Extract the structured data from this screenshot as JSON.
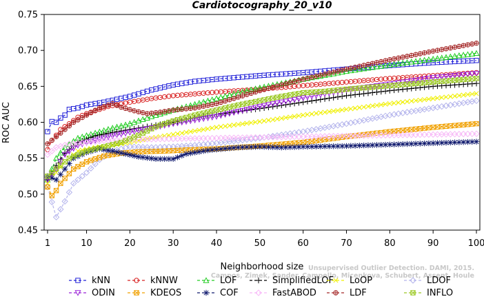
{
  "chart_data": {
    "type": "line",
    "title": "Cardiotocography_20_v10",
    "xlabel": "Neighborhood size",
    "ylabel": "ROC AUC",
    "xlim": [
      1,
      100
    ],
    "ylim": [
      0.45,
      0.75
    ],
    "x_ticks": [
      1,
      10,
      20,
      30,
      40,
      50,
      60,
      70,
      80,
      90,
      100
    ],
    "y_ticks": [
      0.45,
      0.5,
      0.55,
      0.6,
      0.65,
      0.7,
      0.75
    ],
    "grid": false,
    "legend_position": "bottom",
    "credit_lines": [
      "Unsupervised Outlier Detection. DAMI, 2015.",
      "Campos, Zimek, Sander, Campello, Micenkova, Schubert, Assent, Houle"
    ],
    "series": [
      {
        "name": "kNN",
        "color": "#1f1fd8",
        "marker": "square",
        "dash": "4,3",
        "points": [
          [
            1,
            0.587
          ],
          [
            2,
            0.601
          ],
          [
            3,
            0.6
          ],
          [
            4,
            0.606
          ],
          [
            5,
            0.61
          ],
          [
            6,
            0.618
          ],
          [
            8,
            0.62
          ],
          [
            10,
            0.624
          ],
          [
            14,
            0.628
          ],
          [
            20,
            0.636
          ],
          [
            25,
            0.645
          ],
          [
            30,
            0.652
          ],
          [
            35,
            0.657
          ],
          [
            40,
            0.66
          ],
          [
            50,
            0.665
          ],
          [
            60,
            0.669
          ],
          [
            70,
            0.674
          ],
          [
            80,
            0.679
          ],
          [
            90,
            0.683
          ],
          [
            100,
            0.686
          ]
        ]
      },
      {
        "name": "kNNW",
        "color": "#d82020",
        "marker": "circle",
        "dash": "4,3",
        "points": [
          [
            1,
            0.562
          ],
          [
            2,
            0.575
          ],
          [
            3,
            0.582
          ],
          [
            4,
            0.59
          ],
          [
            6,
            0.598
          ],
          [
            8,
            0.607
          ],
          [
            10,
            0.612
          ],
          [
            15,
            0.622
          ],
          [
            20,
            0.628
          ],
          [
            25,
            0.633
          ],
          [
            30,
            0.637
          ],
          [
            40,
            0.642
          ],
          [
            50,
            0.646
          ],
          [
            60,
            0.651
          ],
          [
            70,
            0.656
          ],
          [
            80,
            0.661
          ],
          [
            90,
            0.665
          ],
          [
            100,
            0.669
          ]
        ]
      },
      {
        "name": "LOF",
        "color": "#22cc22",
        "marker": "triangle",
        "dash": "4,3",
        "points": [
          [
            1,
            0.52
          ],
          [
            2,
            0.535
          ],
          [
            3,
            0.55
          ],
          [
            5,
            0.565
          ],
          [
            8,
            0.578
          ],
          [
            12,
            0.585
          ],
          [
            16,
            0.592
          ],
          [
            20,
            0.598
          ],
          [
            25,
            0.608
          ],
          [
            30,
            0.617
          ],
          [
            35,
            0.625
          ],
          [
            40,
            0.633
          ],
          [
            45,
            0.641
          ],
          [
            50,
            0.648
          ],
          [
            60,
            0.66
          ],
          [
            70,
            0.671
          ],
          [
            80,
            0.68
          ],
          [
            90,
            0.688
          ],
          [
            100,
            0.696
          ]
        ]
      },
      {
        "name": "SimplifiedLOF",
        "color": "#000000",
        "marker": "plus",
        "dash": "4,3",
        "points": [
          [
            1,
            0.52
          ],
          [
            2,
            0.528
          ],
          [
            3,
            0.54
          ],
          [
            5,
            0.557
          ],
          [
            8,
            0.572
          ],
          [
            12,
            0.581
          ],
          [
            16,
            0.586
          ],
          [
            20,
            0.59
          ],
          [
            25,
            0.595
          ],
          [
            30,
            0.6
          ],
          [
            35,
            0.606
          ],
          [
            40,
            0.611
          ],
          [
            50,
            0.619
          ],
          [
            60,
            0.628
          ],
          [
            70,
            0.637
          ],
          [
            80,
            0.644
          ],
          [
            90,
            0.65
          ],
          [
            100,
            0.654
          ]
        ]
      },
      {
        "name": "LoOP",
        "color": "#f0f000",
        "marker": "x",
        "dash": "4,3",
        "points": [
          [
            1,
            0.515
          ],
          [
            3,
            0.53
          ],
          [
            5,
            0.545
          ],
          [
            8,
            0.56
          ],
          [
            12,
            0.565
          ],
          [
            16,
            0.568
          ],
          [
            20,
            0.572
          ],
          [
            25,
            0.578
          ],
          [
            30,
            0.583
          ],
          [
            40,
            0.593
          ],
          [
            50,
            0.601
          ],
          [
            60,
            0.61
          ],
          [
            70,
            0.618
          ],
          [
            80,
            0.626
          ],
          [
            90,
            0.633
          ],
          [
            100,
            0.64
          ]
        ]
      },
      {
        "name": "LDOF",
        "color": "#b4b4ec",
        "marker": "diamond",
        "dash": "4,3",
        "points": [
          [
            1,
            0.51
          ],
          [
            3,
            0.468
          ],
          [
            5,
            0.49
          ],
          [
            7,
            0.515
          ],
          [
            10,
            0.53
          ],
          [
            13,
            0.548
          ],
          [
            16,
            0.56
          ],
          [
            20,
            0.566
          ],
          [
            25,
            0.565
          ],
          [
            30,
            0.566
          ],
          [
            35,
            0.568
          ],
          [
            40,
            0.571
          ],
          [
            50,
            0.578
          ],
          [
            60,
            0.587
          ],
          [
            70,
            0.598
          ],
          [
            80,
            0.61
          ],
          [
            90,
            0.62
          ],
          [
            100,
            0.63
          ]
        ]
      },
      {
        "name": "ODIN",
        "color": "#9a20d8",
        "marker": "triangle-down",
        "dash": "4,3",
        "points": [
          [
            1,
            0.52
          ],
          [
            3,
            0.535
          ],
          [
            5,
            0.555
          ],
          [
            8,
            0.568
          ],
          [
            12,
            0.575
          ],
          [
            16,
            0.581
          ],
          [
            20,
            0.586
          ],
          [
            25,
            0.592
          ],
          [
            30,
            0.598
          ],
          [
            35,
            0.603
          ],
          [
            40,
            0.608
          ],
          [
            45,
            0.615
          ],
          [
            50,
            0.622
          ],
          [
            60,
            0.634
          ],
          [
            70,
            0.645
          ],
          [
            80,
            0.653
          ],
          [
            90,
            0.662
          ],
          [
            100,
            0.668
          ]
        ]
      },
      {
        "name": "KDEOS",
        "color": "#f0a000",
        "marker": "square-x",
        "dash": "4,3",
        "points": [
          [
            1,
            0.51
          ],
          [
            2,
            0.498
          ],
          [
            3,
            0.505
          ],
          [
            4,
            0.515
          ],
          [
            5,
            0.522
          ],
          [
            7,
            0.535
          ],
          [
            10,
            0.545
          ],
          [
            14,
            0.553
          ],
          [
            18,
            0.557
          ],
          [
            22,
            0.559
          ],
          [
            28,
            0.56
          ],
          [
            35,
            0.562
          ],
          [
            40,
            0.563
          ],
          [
            50,
            0.567
          ],
          [
            60,
            0.572
          ],
          [
            70,
            0.58
          ],
          [
            80,
            0.587
          ],
          [
            90,
            0.593
          ],
          [
            100,
            0.598
          ]
        ]
      },
      {
        "name": "COF",
        "color": "#101a6e",
        "marker": "star",
        "dash": "4,3",
        "points": [
          [
            1,
            0.525
          ],
          [
            3,
            0.52
          ],
          [
            5,
            0.535
          ],
          [
            7,
            0.55
          ],
          [
            10,
            0.558
          ],
          [
            13,
            0.563
          ],
          [
            16,
            0.56
          ],
          [
            19,
            0.556
          ],
          [
            22,
            0.552
          ],
          [
            26,
            0.549
          ],
          [
            30,
            0.549
          ],
          [
            33,
            0.556
          ],
          [
            38,
            0.561
          ],
          [
            45,
            0.565
          ],
          [
            50,
            0.566
          ],
          [
            55,
            0.565
          ],
          [
            60,
            0.566
          ],
          [
            70,
            0.567
          ],
          [
            80,
            0.569
          ],
          [
            90,
            0.571
          ],
          [
            100,
            0.573
          ]
        ]
      },
      {
        "name": "FastABOD",
        "color": "#f7b8f7",
        "marker": "diamond",
        "dash": "4,3",
        "points": [
          [
            1,
            0.555
          ],
          [
            3,
            0.565
          ],
          [
            6,
            0.57
          ],
          [
            10,
            0.572
          ],
          [
            15,
            0.575
          ],
          [
            20,
            0.576
          ],
          [
            30,
            0.577
          ],
          [
            40,
            0.578
          ],
          [
            50,
            0.579
          ],
          [
            60,
            0.58
          ],
          [
            70,
            0.581
          ],
          [
            80,
            0.582
          ],
          [
            90,
            0.583
          ],
          [
            100,
            0.584
          ]
        ]
      },
      {
        "name": "LDF",
        "color": "#a52828",
        "marker": "circle-plus",
        "dash": "4,3",
        "points": [
          [
            1,
            0.57
          ],
          [
            3,
            0.58
          ],
          [
            5,
            0.59
          ],
          [
            7,
            0.6
          ],
          [
            10,
            0.61
          ],
          [
            13,
            0.62
          ],
          [
            16,
            0.626
          ],
          [
            18,
            0.621
          ],
          [
            21,
            0.616
          ],
          [
            24,
            0.612
          ],
          [
            27,
            0.614
          ],
          [
            30,
            0.617
          ],
          [
            35,
            0.62
          ],
          [
            40,
            0.626
          ],
          [
            45,
            0.635
          ],
          [
            50,
            0.644
          ],
          [
            55,
            0.652
          ],
          [
            60,
            0.66
          ],
          [
            70,
            0.674
          ],
          [
            80,
            0.687
          ],
          [
            90,
            0.699
          ],
          [
            100,
            0.71
          ]
        ]
      },
      {
        "name": "INFLO",
        "color": "#9ac820",
        "marker": "square-x",
        "dash": "4,3",
        "points": [
          [
            1,
            0.525
          ],
          [
            3,
            0.535
          ],
          [
            6,
            0.55
          ],
          [
            10,
            0.56
          ],
          [
            14,
            0.566
          ],
          [
            18,
            0.572
          ],
          [
            22,
            0.582
          ],
          [
            26,
            0.594
          ],
          [
            30,
            0.602
          ],
          [
            35,
            0.61
          ],
          [
            40,
            0.617
          ],
          [
            45,
            0.624
          ],
          [
            50,
            0.63
          ],
          [
            55,
            0.636
          ],
          [
            60,
            0.641
          ],
          [
            65,
            0.643
          ],
          [
            70,
            0.646
          ],
          [
            80,
            0.651
          ],
          [
            90,
            0.656
          ],
          [
            100,
            0.661
          ]
        ]
      }
    ]
  }
}
